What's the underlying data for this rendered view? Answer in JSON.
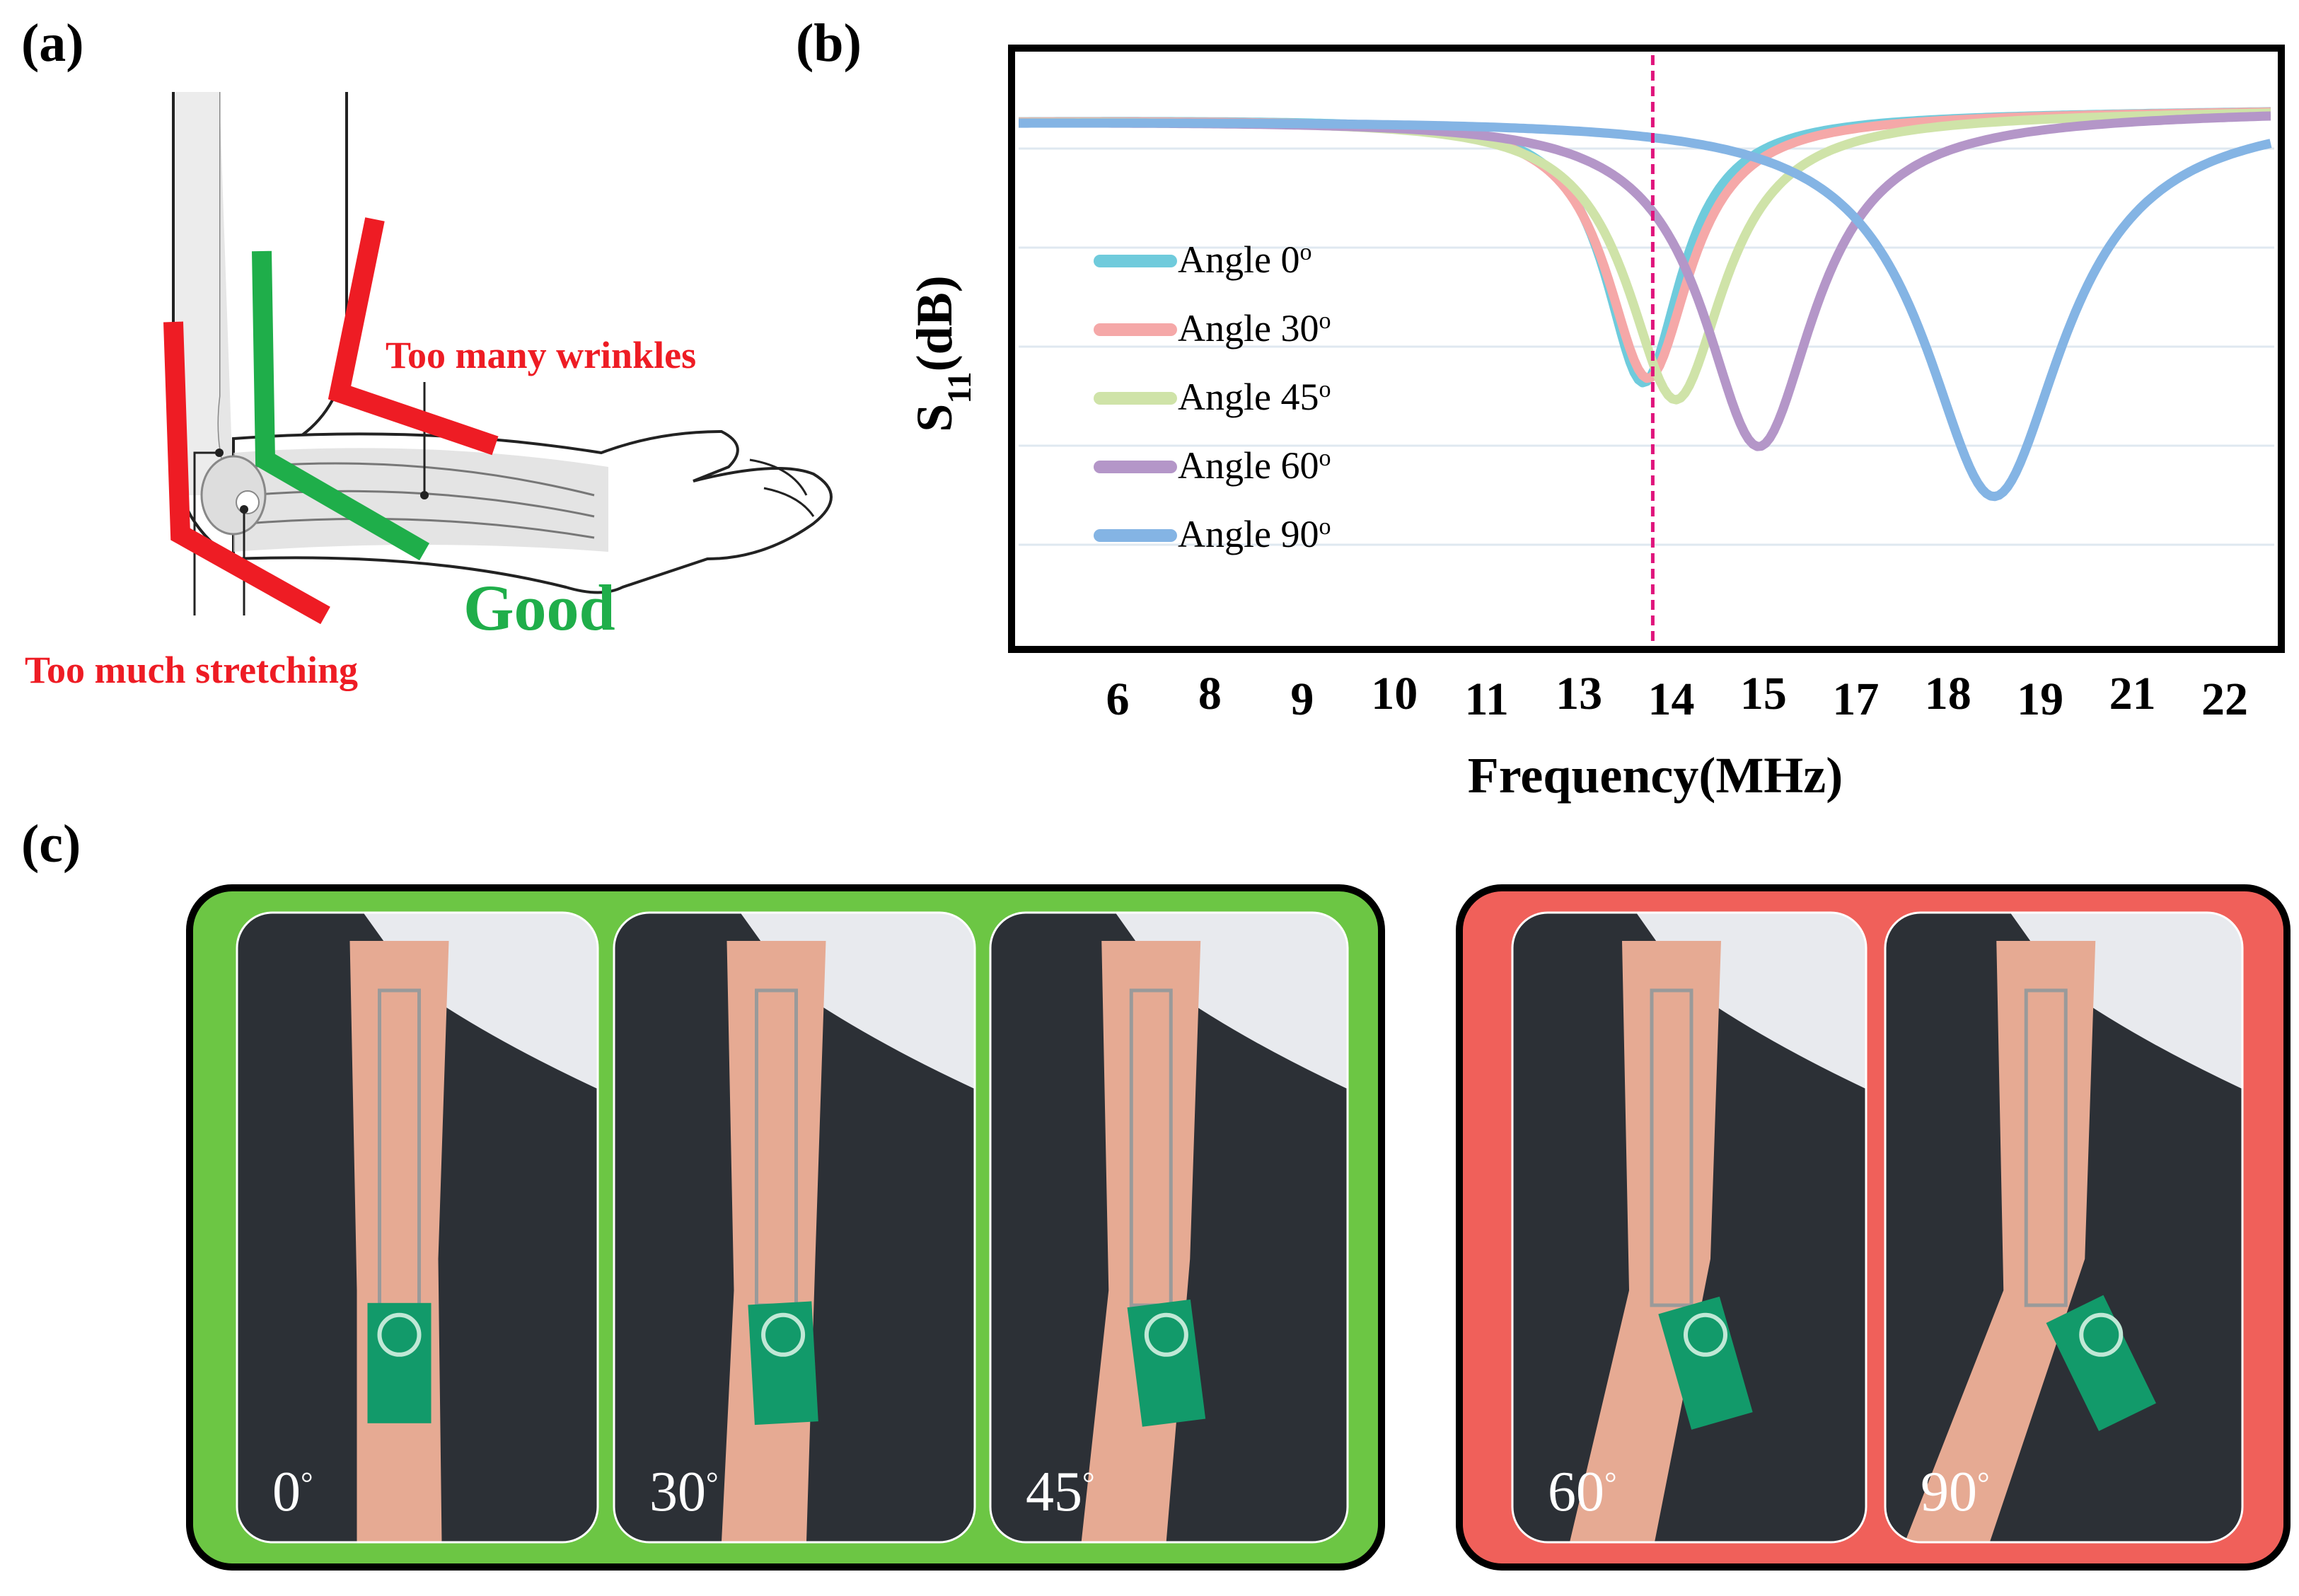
{
  "labels": {
    "a": "(a)",
    "b": "(b)",
    "c": "(c)"
  },
  "panel_a": {
    "too_many_wrinkles": "Too many wrinkles",
    "good": "Good",
    "too_much_stretching": "Too much stretching",
    "colors": {
      "bad": "#ee1c24",
      "good": "#1fae4a"
    }
  },
  "chart_data": {
    "type": "line",
    "xlabel": "Frequency(MHz)",
    "ylabel": "S11(dB)",
    "ylabel_main": "S",
    "ylabel_sub": "11",
    "ylabel_unit": "(dB)",
    "tick_labels": [
      "6",
      "8",
      "9",
      "10",
      "11",
      "13",
      "14",
      "15",
      "17",
      "18",
      "19",
      "21",
      "22"
    ],
    "xlim": [
      6,
      22
    ],
    "marker_x": 13.8,
    "legend_position": "left",
    "series": [
      {
        "name": "Angle 0",
        "sup": "o",
        "color": "#6fcbdc",
        "resonance": 13.7,
        "depth": 0.62,
        "width": 0.55
      },
      {
        "name": "Angle 30",
        "sup": "o",
        "color": "#f5a8a8",
        "resonance": 13.75,
        "depth": 0.61,
        "width": 0.6
      },
      {
        "name": "Angle 45",
        "sup": "o",
        "color": "#cfe3a8",
        "resonance": 14.05,
        "depth": 0.66,
        "width": 0.7
      },
      {
        "name": "Angle 60",
        "sup": "o",
        "color": "#b496c8",
        "resonance": 14.95,
        "depth": 0.77,
        "width": 0.8
      },
      {
        "name": "Angle 90",
        "sup": "o",
        "color": "#84b4e4",
        "resonance": 18.5,
        "depth": 0.89,
        "width": 1.0
      }
    ]
  },
  "panel_c": {
    "good_group_color": "#6cc644",
    "bad_group_color": "#f0605a",
    "photos": [
      {
        "label": "0",
        "group": "good"
      },
      {
        "label": "30",
        "group": "good"
      },
      {
        "label": "45",
        "group": "good"
      },
      {
        "label": "60",
        "group": "bad"
      },
      {
        "label": "90",
        "group": "bad"
      }
    ],
    "degree_symbol": "°"
  }
}
